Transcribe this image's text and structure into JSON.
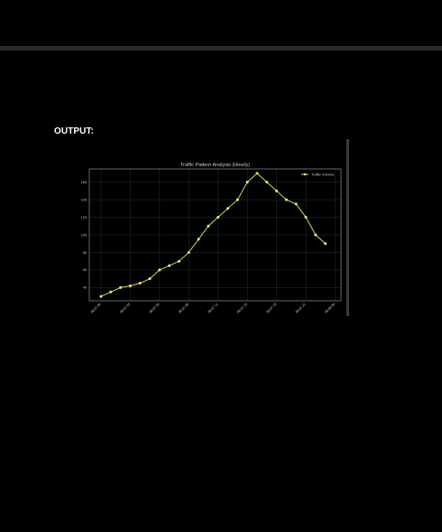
{
  "output": {
    "label": "OUTPUT:"
  },
  "colors": {
    "background": "#000000",
    "divider": "#2a2a2a",
    "grid": "#3a3a3a",
    "axis": "#aaaaaa",
    "line": "#d8d060",
    "marker": "#f0ea70",
    "text": "#cccccc"
  },
  "chart_data": {
    "type": "line",
    "title": "Traffic Pattern Analysis (Hourly)",
    "xlabel": "",
    "ylabel": "",
    "ylim": [
      25,
      175
    ],
    "yticks": [
      40,
      60,
      80,
      100,
      120,
      140,
      160
    ],
    "xtick_labels": [
      "09-07 00",
      "09-07 03",
      "09-07 06",
      "09-07 09",
      "09-07 12",
      "09-07 15",
      "09-07 18",
      "09-07 21",
      "09-08 00"
    ],
    "grid": true,
    "legend": "top-right",
    "series": [
      {
        "name": "Traffic Volume",
        "x": [
          0,
          1,
          2,
          3,
          4,
          5,
          6,
          7,
          8,
          9,
          10,
          11,
          12,
          13,
          14,
          15,
          16,
          17,
          18,
          19,
          20,
          21,
          22,
          23
        ],
        "values": [
          30,
          35,
          40,
          42,
          45,
          50,
          60,
          65,
          70,
          80,
          95,
          110,
          120,
          130,
          140,
          160,
          170,
          160,
          150,
          140,
          135,
          120,
          100,
          90
        ]
      }
    ]
  }
}
